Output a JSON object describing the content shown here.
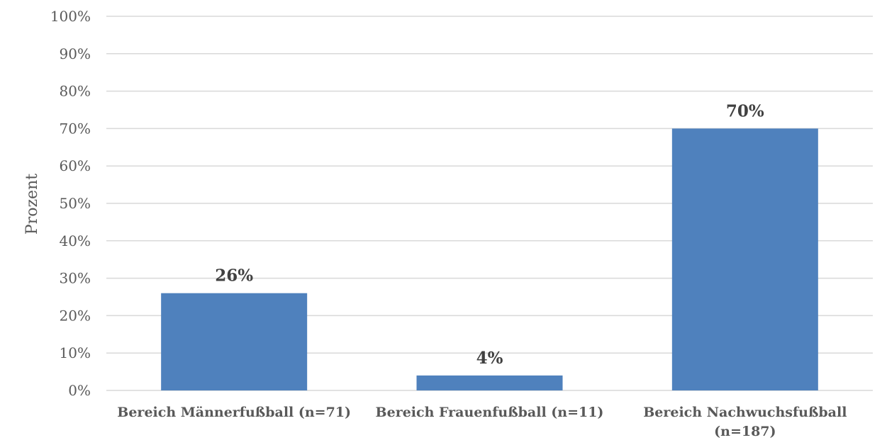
{
  "chart_data": {
    "type": "bar",
    "categories": [
      [
        "Bereich Männerfußball (n=71)"
      ],
      [
        "Bereich Frauenfußball (n=11)"
      ],
      [
        "Bereich Nachwuchsfußball",
        "(n=187)"
      ]
    ],
    "values": [
      26,
      4,
      70
    ],
    "data_labels": [
      "26%",
      "4%",
      "70%"
    ],
    "ylabel": "Prozent",
    "ylim": [
      0,
      100
    ],
    "yticks": [
      "0%",
      "10%",
      "20%",
      "30%",
      "40%",
      "50%",
      "60%",
      "70%",
      "80%",
      "90%",
      "100%"
    ],
    "grid": true,
    "bar_color": "#4f81bd"
  }
}
